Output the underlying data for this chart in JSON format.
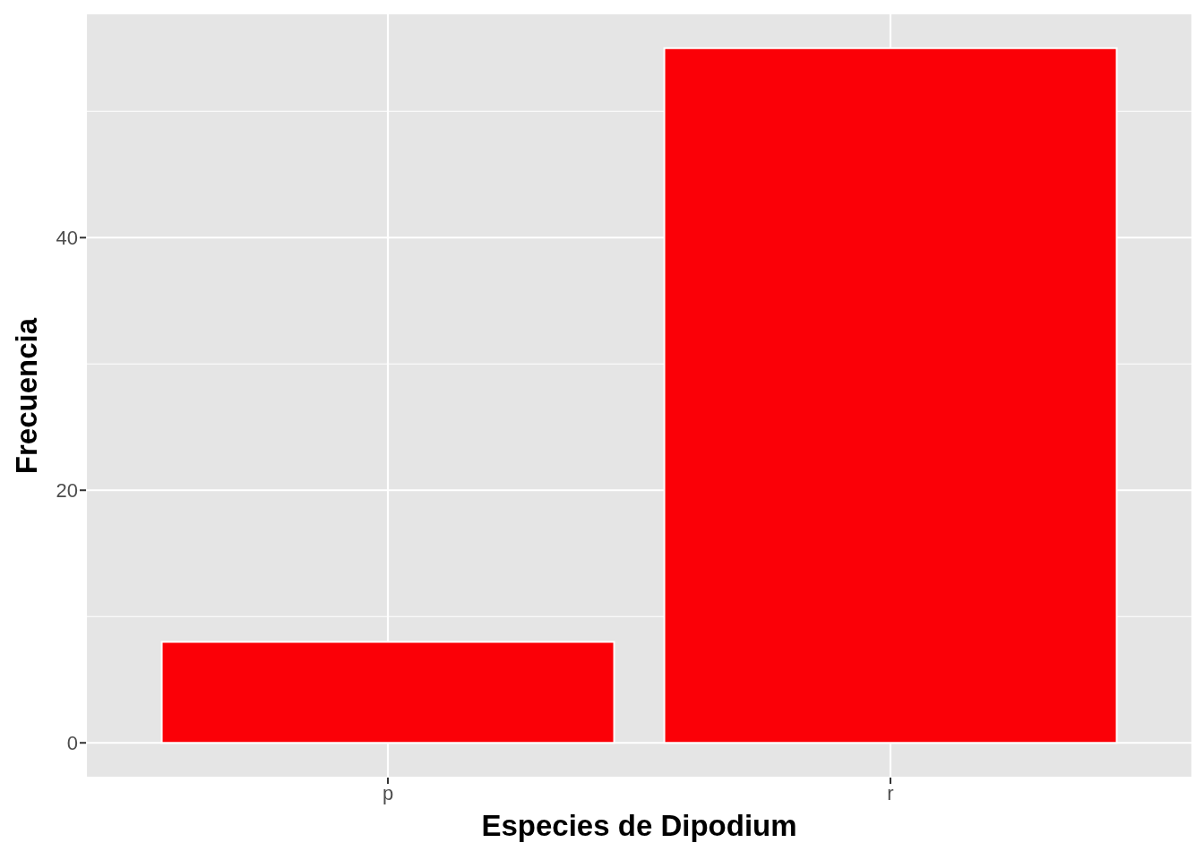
{
  "chart_data": {
    "type": "bar",
    "xlabel": "Especies de Dipodium",
    "ylabel": "Frecuencia",
    "categories": [
      "p",
      "r"
    ],
    "values": [
      8,
      55
    ],
    "color": "#fb0007",
    "ylim": [
      -2.75,
      57.75
    ],
    "yticks": [
      0,
      20,
      40
    ],
    "grid": true
  }
}
